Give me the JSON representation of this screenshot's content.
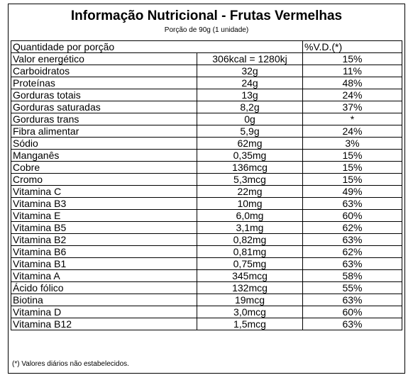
{
  "title": "Informação Nutricional - Frutas Vermelhas",
  "serving": "Porção de 90g (1 unidade)",
  "header": {
    "label": "Quantidade por porção",
    "dv": "%V.D.(*)"
  },
  "rows": [
    {
      "name": "Valor energético",
      "amount": "306kcal = 1280kj",
      "dv": "15%"
    },
    {
      "name": "Carboidratos",
      "amount": "32g",
      "dv": "11%"
    },
    {
      "name": "Proteínas",
      "amount": "24g",
      "dv": "48%"
    },
    {
      "name": "Gorduras totais",
      "amount": "13g",
      "dv": "24%"
    },
    {
      "name": "Gorduras saturadas",
      "amount": "8,2g",
      "dv": "37%"
    },
    {
      "name": "Gorduras trans",
      "amount": "0g",
      "dv": "*"
    },
    {
      "name": "Fibra alimentar",
      "amount": "5,9g",
      "dv": "24%"
    },
    {
      "name": "Sódio",
      "amount": "62mg",
      "dv": "3%"
    },
    {
      "name": "Manganês",
      "amount": "0,35mg",
      "dv": "15%"
    },
    {
      "name": "Cobre",
      "amount": "136mcg",
      "dv": "15%"
    },
    {
      "name": "Cromo",
      "amount": "5,3mcg",
      "dv": "15%"
    },
    {
      "name": "Vitamina C",
      "amount": "22mg",
      "dv": "49%"
    },
    {
      "name": "Vitamina B3",
      "amount": "10mg",
      "dv": "63%"
    },
    {
      "name": "Vitamina E",
      "amount": "6,0mg",
      "dv": "60%"
    },
    {
      "name": "Vitamina B5",
      "amount": "3,1mg",
      "dv": "62%"
    },
    {
      "name": "Vitamina B2",
      "amount": "0,82mg",
      "dv": "63%"
    },
    {
      "name": "Vitamina B6",
      "amount": "0,81mg",
      "dv": "62%"
    },
    {
      "name": "Vitamina B1",
      "amount": "0,75mg",
      "dv": "63%"
    },
    {
      "name": "Vitamina A",
      "amount": "345mcg",
      "dv": "58%"
    },
    {
      "name": "Ácido fólico",
      "amount": "132mcg",
      "dv": "55%"
    },
    {
      "name": "Biotina",
      "amount": "19mcg",
      "dv": "63%"
    },
    {
      "name": "Vitamina D",
      "amount": "3,0mcg",
      "dv": "60%"
    },
    {
      "name": "Vitamina B12",
      "amount": "1,5mcg",
      "dv": "63%"
    }
  ],
  "footnote": "(*) Valores diários não estabelecidos."
}
